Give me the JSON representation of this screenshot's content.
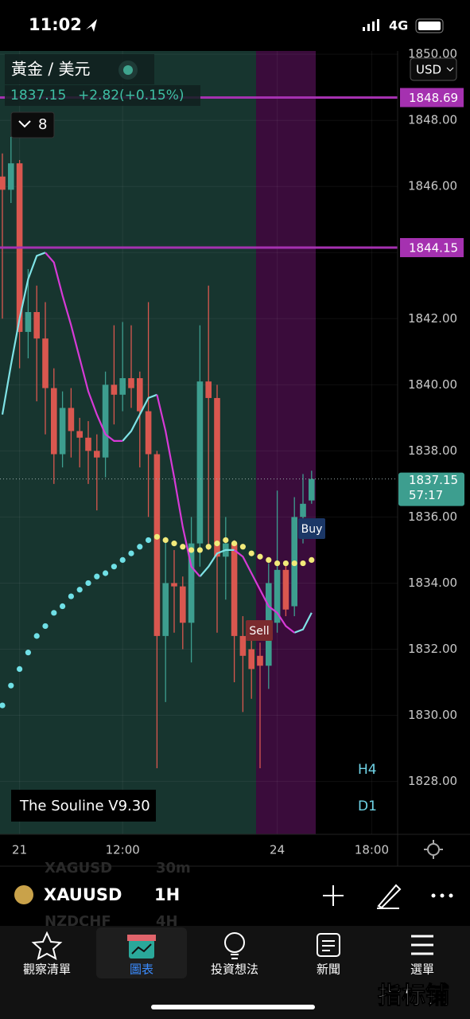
{
  "status_bar": {
    "time": "11:02",
    "network": "4G"
  },
  "header": {
    "symbol_name": "黃金 / 美元",
    "price": 1837.15,
    "change": "+2.82",
    "change_pct": "(+0.15%)",
    "indicator_count": "8",
    "currency": "USD"
  },
  "indicator_name": "The Souline V9.30",
  "timeframe_buttons": [
    "H4",
    "D1"
  ],
  "chart_data": {
    "type": "candlestick",
    "categories": [
      null,
      null,
      "21",
      null,
      null,
      null,
      null,
      null,
      null,
      null,
      null,
      null,
      null,
      null,
      "12:00",
      null,
      null,
      null,
      null,
      null,
      null,
      null,
      null,
      null,
      null,
      null,
      null,
      null,
      null,
      null,
      null,
      null,
      "24",
      null,
      null,
      null,
      null,
      null,
      null,
      null,
      null,
      null,
      null,
      "18:00",
      null,
      null
    ],
    "open": [
      1846.3,
      1845.9,
      1846.7,
      1841.6,
      1842.2,
      1841.4,
      1839.9,
      1837.9,
      1839.3,
      1838.6,
      1838.4,
      1838.0,
      1837.8,
      1840.0,
      1839.7,
      1840.2,
      1840.2,
      1839.2,
      1837.9,
      1832.4,
      1834.0,
      1833.9,
      1832.8,
      1835.2,
      1840.1,
      1839.6,
      1834.8,
      1835.2,
      1832.4,
      1832.0,
      1831.8,
      1831.5,
      1832.8,
      1834.4,
      1833.3,
      1836.0,
      1836.5,
      null,
      null,
      null,
      null,
      null,
      null,
      null,
      null,
      null
    ],
    "high": [
      1847.0,
      1847.5,
      1846.8,
      1843.5,
      1843.0,
      1842.5,
      1840.5,
      1839.8,
      1839.9,
      1839.0,
      1838.9,
      1838.5,
      1840.4,
      1841.8,
      1841.9,
      1841.8,
      1840.4,
      1842.5,
      1838.0,
      1835.4,
      1835.0,
      1834.2,
      1836.0,
      1841.8,
      1843.0,
      1840.0,
      1836.0,
      1835.3,
      1833.0,
      1832.8,
      1832.2,
      1834.6,
      1836.8,
      1834.6,
      1836.6,
      1837.3,
      1837.4,
      null,
      null,
      null,
      null,
      null,
      null,
      null,
      null,
      null
    ],
    "low": [
      1842.0,
      1845.5,
      1840.5,
      1840.8,
      1839.5,
      1838.5,
      1837.0,
      1837.5,
      1837.8,
      1837.5,
      1837.0,
      1836.2,
      1837.2,
      1838.8,
      1839.2,
      1839.3,
      1837.5,
      1836.0,
      1828.4,
      1830.4,
      1832.5,
      1832.0,
      1831.6,
      1834.5,
      1835.0,
      1832.5,
      1833.5,
      1831.0,
      1830.1,
      1830.5,
      1828.4,
      1830.8,
      1832.5,
      1833.0,
      1833.0,
      1835.2,
      1836.4,
      null,
      null,
      null,
      null,
      null,
      null,
      null,
      null,
      null
    ],
    "close": [
      1845.9,
      1846.7,
      1841.6,
      1842.2,
      1841.4,
      1839.9,
      1837.9,
      1839.3,
      1838.6,
      1838.4,
      1838.0,
      1837.8,
      1840.0,
      1839.7,
      1840.2,
      1839.9,
      1839.2,
      1837.9,
      1832.4,
      1834.0,
      1833.9,
      1832.8,
      1835.2,
      1840.1,
      1839.6,
      1834.8,
      1835.2,
      1832.4,
      1831.8,
      1831.4,
      1831.5,
      1834.0,
      1834.4,
      1833.2,
      1836.0,
      1836.4,
      1837.15,
      null,
      null,
      null,
      null,
      null,
      null,
      null,
      null,
      null
    ],
    "up_color": "#3d9e8f",
    "down_color": "#d9574f",
    "series": [
      {
        "color": "#7fe3e6",
        "style": "line",
        "values": [
          1839.1,
          1840.6,
          1842.0,
          1843.2,
          1843.9,
          1844.0,
          null,
          null,
          null,
          null,
          null,
          null,
          null,
          null,
          1838.3,
          1838.6,
          1839.1,
          1839.6,
          1839.7,
          null,
          null,
          null,
          null,
          1834.2,
          1834.5,
          1834.9,
          1835.0,
          1835.0,
          null,
          null,
          null,
          null,
          null,
          null,
          1832.5,
          1832.6,
          1833.1,
          null,
          null,
          null,
          null,
          null,
          null,
          null,
          null,
          null
        ]
      },
      {
        "color": "#d63ad6",
        "style": "line",
        "values": [
          null,
          null,
          null,
          null,
          null,
          1844.0,
          1843.7,
          1842.7,
          1841.8,
          1840.8,
          1839.8,
          1839.1,
          1838.5,
          1838.3,
          1838.3,
          null,
          null,
          null,
          1839.7,
          1838.6,
          1837.2,
          1835.7,
          1834.5,
          1834.2,
          null,
          null,
          null,
          1835.0,
          1834.8,
          1834.3,
          1833.8,
          1833.3,
          1833.1,
          1832.7,
          1832.5,
          null,
          null,
          null,
          null,
          null,
          null,
          null,
          null,
          null,
          null,
          null
        ]
      },
      {
        "color": "#6fe0e6",
        "style": "dots",
        "values": [
          1830.3,
          1830.9,
          1831.4,
          1831.9,
          1832.4,
          1832.7,
          1833.1,
          1833.3,
          1833.6,
          1833.8,
          1834.0,
          1834.2,
          1834.3,
          1834.5,
          1834.7,
          1834.9,
          1835.1,
          1835.3,
          null,
          null,
          null,
          null,
          null,
          null,
          null,
          null,
          null,
          null,
          null,
          null,
          null,
          null,
          null,
          null,
          null,
          null,
          null,
          null,
          null,
          null,
          null,
          null,
          null,
          null,
          null,
          null
        ]
      },
      {
        "color": "#f2ea7a",
        "style": "dots",
        "values": [
          null,
          null,
          null,
          null,
          null,
          null,
          null,
          null,
          null,
          null,
          null,
          null,
          null,
          null,
          null,
          null,
          null,
          null,
          1835.4,
          1835.3,
          1835.2,
          1835.1,
          1835.0,
          1835.0,
          1835.1,
          1835.2,
          1835.3,
          1835.2,
          1835.1,
          1834.9,
          1834.8,
          1834.7,
          1834.6,
          1834.6,
          1834.6,
          1834.6,
          1834.7,
          null,
          null,
          null,
          null,
          null,
          null,
          null,
          null,
          null
        ]
      }
    ],
    "hlines": [
      {
        "value": 1848.69,
        "color": "#a531b0"
      },
      {
        "value": 1844.15,
        "color": "#a531b0"
      }
    ],
    "last_price": 1837.15,
    "last_price_timer": "57:17",
    "annotations": [
      {
        "text": "Sell"
      },
      {
        "text": "Buy"
      }
    ],
    "ylim": [
      1826.4,
      1850.1
    ],
    "yticks": [
      {
        "value": 1828,
        "label": "1828.00"
      },
      {
        "value": 1830,
        "label": "1830.00"
      },
      {
        "value": 1832,
        "label": "1832.00"
      },
      {
        "value": 1834,
        "label": "1834.00"
      },
      {
        "value": 1836,
        "label": "1836.00"
      },
      {
        "value": 1838,
        "label": "1838.00"
      },
      {
        "value": 1840,
        "label": "1840.00"
      },
      {
        "value": 1842,
        "label": "1842.00"
      },
      {
        "value": 1844,
        "label": "1844.00"
      },
      {
        "value": 1846,
        "label": "1846.00"
      },
      {
        "value": 1848,
        "label": "1848.00"
      },
      {
        "value": 1850,
        "label": "1850.00"
      }
    ],
    "grid": true
  },
  "toolbar": {
    "symbol": "XAUUSD",
    "interval": "1H",
    "ghost": [
      "XAGUSD",
      "30m",
      "NZDCHF",
      "4H"
    ]
  },
  "tabs": [
    "觀察清單",
    "圖表",
    "投資想法",
    "新聞",
    "選單"
  ],
  "watermark": "指标铺"
}
